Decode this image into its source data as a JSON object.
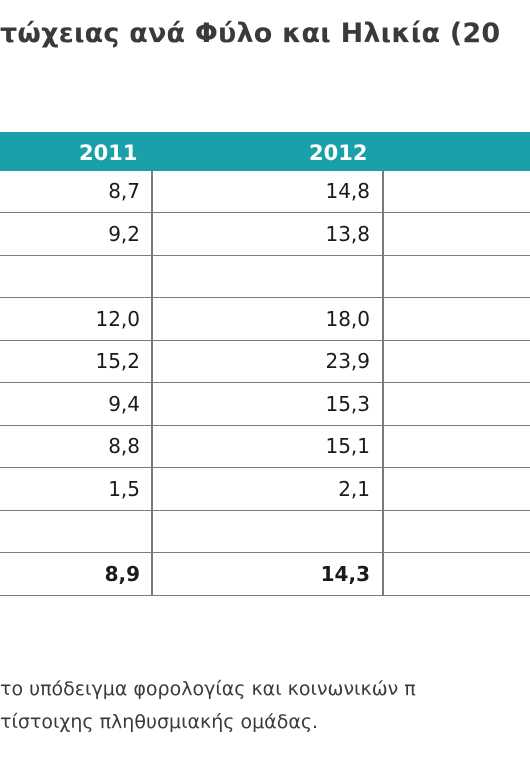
{
  "title": "τώχειας ανά Φύλο και Ηλικία (20",
  "table": {
    "headers": [
      "2011",
      "2012"
    ],
    "rows": [
      {
        "v2011": "8,7",
        "v2012": "14,8",
        "bold": false
      },
      {
        "v2011": "9,2",
        "v2012": "13,8",
        "bold": false
      },
      {
        "v2011": "",
        "v2012": "",
        "bold": false
      },
      {
        "v2011": "12,0",
        "v2012": "18,0",
        "bold": false
      },
      {
        "v2011": "15,2",
        "v2012": "23,9",
        "bold": false
      },
      {
        "v2011": "9,4",
        "v2012": "15,3",
        "bold": false
      },
      {
        "v2011": "8,8",
        "v2012": "15,1",
        "bold": false
      },
      {
        "v2011": "1,5",
        "v2012": "2,1",
        "bold": false
      },
      {
        "v2011": "",
        "v2012": "",
        "bold": false
      },
      {
        "v2011": "8,9",
        "v2012": "14,3",
        "bold": true
      }
    ]
  },
  "note": {
    "line1": "το υπόδειγμα φορολογίας και κοινωνικών π",
    "line2": "τίστοιχης πληθυσμιακής ομάδας."
  }
}
